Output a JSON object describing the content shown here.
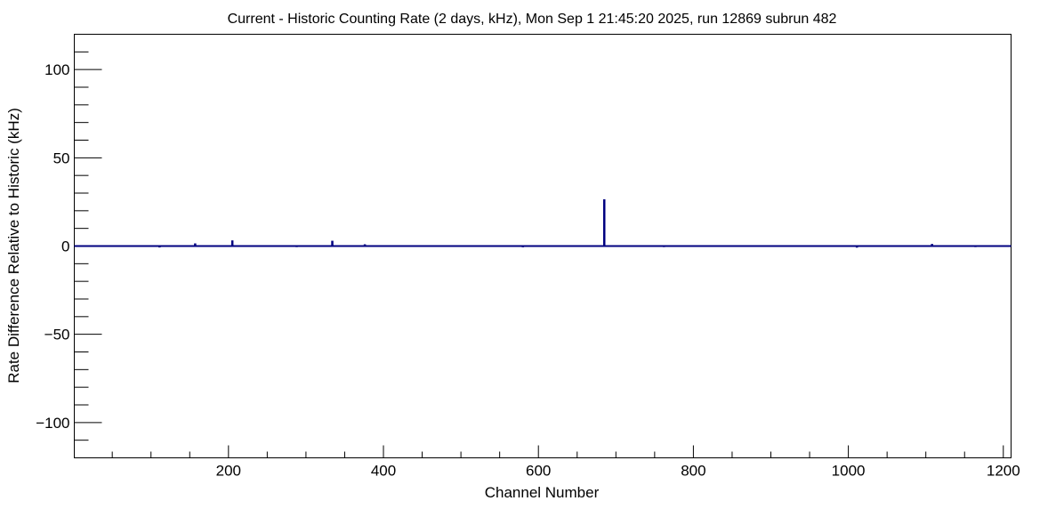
{
  "chart_data": {
    "type": "bar",
    "title": "Current - Historic Counting Rate (2 days, kHz), Mon Sep  1 21:45:20 2025, run 12869 subrun 482",
    "xlabel": "Channel Number",
    "ylabel": "Rate Difference Relative to Historic (kHz)",
    "xlim": [
      1,
      1210
    ],
    "ylim": [
      -120,
      120
    ],
    "x_ticks": [
      "200",
      "400",
      "600",
      "800",
      "1000",
      "1200"
    ],
    "y_ticks": [
      "100",
      "50",
      "0",
      "−50",
      "−100"
    ],
    "baseline": 0,
    "line_color": "#000080",
    "series": [
      {
        "x": [
          111,
          157,
          172,
          205,
          288,
          334,
          376,
          549,
          580,
          676,
          685,
          733,
          762,
          779,
          815,
          1011,
          1040,
          1108,
          1164
        ],
        "values": [
          -0.8,
          1.5,
          0.4,
          3.2,
          -0.6,
          3.0,
          1.0,
          0.3,
          -0.7,
          -0.5,
          26.5,
          -0.5,
          -0.6,
          -0.5,
          0.3,
          -0.9,
          0.4,
          1.2,
          -0.6
        ]
      }
    ]
  }
}
